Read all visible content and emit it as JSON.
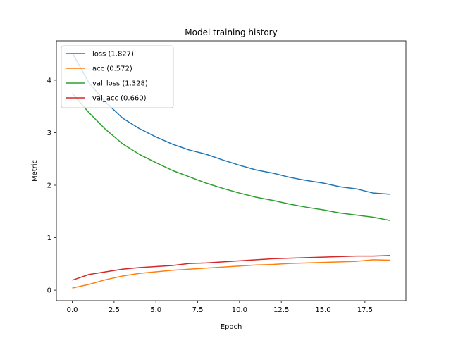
{
  "chart_data": {
    "type": "line",
    "title": "Model training history",
    "xlabel": "Epoch",
    "ylabel": "Metric",
    "xlim": [
      -0.95,
      19.95
    ],
    "ylim": [
      -0.2,
      4.75
    ],
    "xticks": [
      0.0,
      2.5,
      5.0,
      7.5,
      10.0,
      12.5,
      15.0,
      17.5
    ],
    "xtick_labels": [
      "0.0",
      "2.5",
      "5.0",
      "7.5",
      "10.0",
      "12.5",
      "15.0",
      "17.5"
    ],
    "yticks": [
      0,
      1,
      2,
      3,
      4
    ],
    "ytick_labels": [
      "0",
      "1",
      "2",
      "3",
      "4"
    ],
    "grid": false,
    "legend_position": "top-left",
    "x": [
      0,
      1,
      2,
      3,
      4,
      5,
      6,
      7,
      8,
      9,
      10,
      11,
      12,
      13,
      14,
      15,
      16,
      17,
      18,
      19
    ],
    "series": [
      {
        "name": "loss",
        "legend_label": "loss (1.827)",
        "color": "#1f77b4",
        "values": [
          4.52,
          3.95,
          3.58,
          3.28,
          3.08,
          2.92,
          2.78,
          2.67,
          2.59,
          2.48,
          2.38,
          2.29,
          2.23,
          2.15,
          2.09,
          2.04,
          1.97,
          1.93,
          1.85,
          1.827
        ]
      },
      {
        "name": "acc",
        "legend_label": "acc (0.572)",
        "color": "#ff7f0e",
        "values": [
          0.04,
          0.11,
          0.2,
          0.27,
          0.32,
          0.35,
          0.38,
          0.4,
          0.42,
          0.44,
          0.46,
          0.48,
          0.49,
          0.51,
          0.52,
          0.53,
          0.54,
          0.55,
          0.58,
          0.572
        ]
      },
      {
        "name": "val_loss",
        "legend_label": "val_loss (1.328)",
        "color": "#2ca02c",
        "values": [
          3.75,
          3.38,
          3.06,
          2.79,
          2.59,
          2.43,
          2.28,
          2.16,
          2.04,
          1.94,
          1.85,
          1.77,
          1.71,
          1.64,
          1.58,
          1.53,
          1.47,
          1.43,
          1.39,
          1.328
        ]
      },
      {
        "name": "val_acc",
        "legend_label": "val_acc (0.660)",
        "color": "#d62728",
        "values": [
          0.19,
          0.3,
          0.35,
          0.4,
          0.43,
          0.45,
          0.47,
          0.51,
          0.52,
          0.54,
          0.56,
          0.58,
          0.6,
          0.61,
          0.62,
          0.63,
          0.64,
          0.65,
          0.65,
          0.66
        ]
      }
    ]
  }
}
